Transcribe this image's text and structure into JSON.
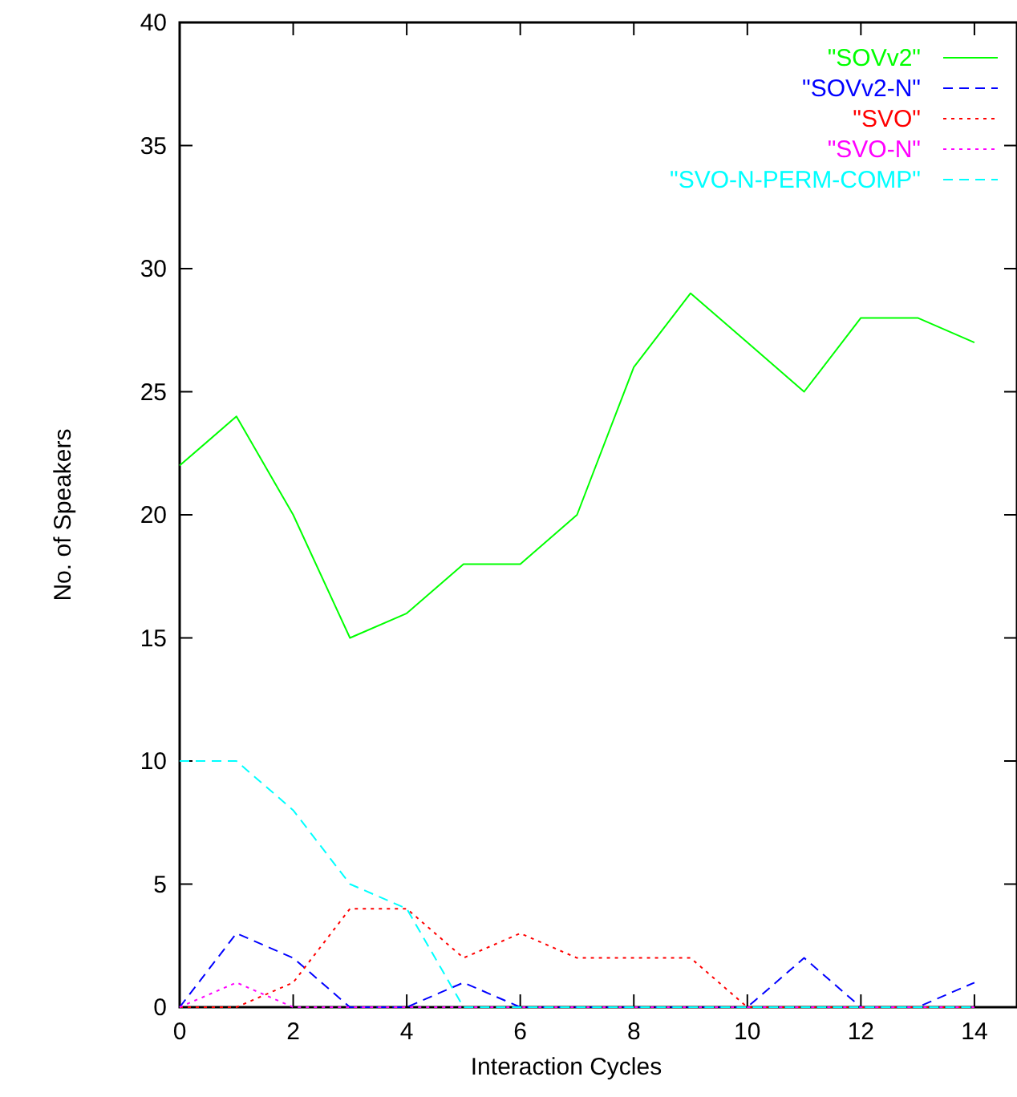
{
  "chart_data": {
    "type": "line",
    "xlabel": "Interaction Cycles",
    "ylabel": "No. of Speakers",
    "x": [
      0,
      1,
      2,
      3,
      4,
      5,
      6,
      7,
      8,
      9,
      10,
      11,
      12,
      13,
      14
    ],
    "xlim": [
      0,
      14.75
    ],
    "xticks": [
      0,
      2,
      4,
      6,
      8,
      10,
      12,
      14
    ],
    "ylim": [
      0,
      40
    ],
    "yticks": [
      0,
      5,
      10,
      15,
      20,
      25,
      30,
      35,
      40
    ],
    "grid": false,
    "legend": "top right",
    "marker": "none",
    "series": [
      {
        "name": "\"SOVv2\"",
        "color": "#00ff00",
        "line_style": "solid",
        "values": [
          22,
          24,
          20,
          15,
          16,
          18,
          18,
          20,
          26,
          29,
          27,
          25,
          28,
          28,
          27
        ]
      },
      {
        "name": "\"SOVv2-N\"",
        "color": "#0000ff",
        "line_style": "dashed",
        "values": [
          0,
          3,
          2,
          0,
          0,
          1,
          0,
          0,
          0,
          0,
          0,
          2,
          0,
          0,
          1
        ]
      },
      {
        "name": "\"SVO\"",
        "color": "#ff0000",
        "line_style": "dotted",
        "values": [
          0,
          0,
          1,
          4,
          4,
          2,
          3,
          2,
          2,
          2,
          0,
          0,
          0,
          0,
          0
        ]
      },
      {
        "name": "\"SVO-N\"",
        "color": "#ff00ff",
        "line_style": "dotted",
        "values": [
          0,
          1,
          0,
          0,
          0,
          0,
          0,
          0,
          0,
          0,
          0,
          0,
          0,
          0,
          0
        ]
      },
      {
        "name": "\"SVO-N-PERM-COMP\"",
        "color": "#00ffff",
        "line_style": "dashed",
        "values": [
          10,
          10,
          8,
          5,
          4,
          0,
          0,
          0,
          0,
          0,
          0,
          0,
          0,
          0,
          0
        ]
      }
    ]
  }
}
